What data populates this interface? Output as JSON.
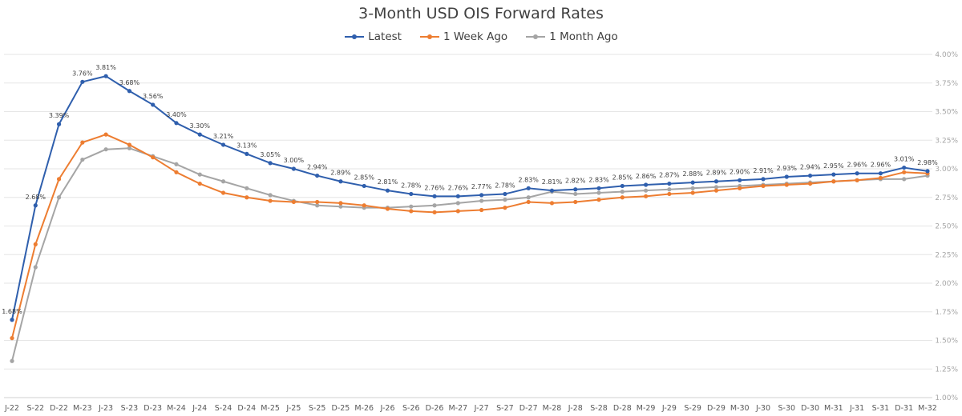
{
  "chart_data": {
    "type": "line",
    "title": "3-Month USD OIS Forward Rates",
    "xlabel": "",
    "ylabel": "",
    "ylim": [
      1.0,
      4.0
    ],
    "y_ticks": [
      "1.00%",
      "1.25%",
      "1.50%",
      "1.75%",
      "2.00%",
      "2.25%",
      "2.50%",
      "2.75%",
      "3.00%",
      "3.25%",
      "3.50%",
      "3.75%",
      "4.00%"
    ],
    "y_axis_position": "right",
    "grid": true,
    "legend_position": "top",
    "categories": [
      "J-22",
      "S-22",
      "D-22",
      "M-23",
      "J-23",
      "S-23",
      "D-23",
      "M-24",
      "J-24",
      "S-24",
      "D-24",
      "M-25",
      "J-25",
      "S-25",
      "D-25",
      "M-26",
      "J-26",
      "S-26",
      "D-26",
      "M-27",
      "J-27",
      "S-27",
      "D-27",
      "M-28",
      "J-28",
      "S-28",
      "D-28",
      "M-29",
      "J-29",
      "S-29",
      "D-29",
      "M-30",
      "J-30",
      "S-30",
      "D-30",
      "M-31",
      "J-31",
      "S-31",
      "D-31",
      "M-32"
    ],
    "series": [
      {
        "name": "Latest",
        "color": "#2f5fad",
        "values": [
          1.68,
          2.68,
          3.39,
          3.76,
          3.81,
          3.68,
          3.56,
          3.4,
          3.3,
          3.21,
          3.13,
          3.05,
          3.0,
          2.94,
          2.89,
          2.85,
          2.81,
          2.78,
          2.76,
          2.76,
          2.77,
          2.78,
          2.83,
          2.81,
          2.82,
          2.83,
          2.85,
          2.86,
          2.87,
          2.88,
          2.89,
          2.9,
          2.91,
          2.93,
          2.94,
          2.95,
          2.96,
          2.96,
          3.01,
          2.98
        ],
        "labels": [
          "1.68%",
          "2.68%",
          "3.39%",
          "3.76%",
          "3.81%",
          "3.68%",
          "3.56%",
          "3.40%",
          "3.30%",
          "3.21%",
          "3.13%",
          "3.05%",
          "3.00%",
          "2.94%",
          "2.89%",
          "2.85%",
          "2.81%",
          "2.78%",
          "2.76%",
          "2.76%",
          "2.77%",
          "2.78%",
          "2.83%",
          "2.81%",
          "2.82%",
          "2.83%",
          "2.85%",
          "2.86%",
          "2.87%",
          "2.88%",
          "2.89%",
          "2.90%",
          "2.91%",
          "2.93%",
          "2.94%",
          "2.95%",
          "2.96%",
          "2.96%",
          "3.01%",
          "2.98%"
        ]
      },
      {
        "name": "1 Week Ago",
        "color": "#ed7d31",
        "values": [
          1.52,
          2.34,
          2.91,
          3.23,
          3.3,
          3.21,
          3.1,
          2.97,
          2.87,
          2.79,
          2.75,
          2.72,
          2.71,
          2.71,
          2.7,
          2.68,
          2.65,
          2.63,
          2.62,
          2.63,
          2.64,
          2.66,
          2.71,
          2.7,
          2.71,
          2.73,
          2.75,
          2.76,
          2.78,
          2.79,
          2.81,
          2.83,
          2.85,
          2.86,
          2.87,
          2.89,
          2.9,
          2.92,
          2.97,
          2.96
        ]
      },
      {
        "name": "1 Month Ago",
        "color": "#a5a5a5",
        "values": [
          1.32,
          2.14,
          2.75,
          3.08,
          3.17,
          3.18,
          3.11,
          3.04,
          2.95,
          2.89,
          2.83,
          2.77,
          2.72,
          2.68,
          2.67,
          2.66,
          2.66,
          2.67,
          2.68,
          2.7,
          2.72,
          2.73,
          2.75,
          2.8,
          2.78,
          2.79,
          2.8,
          2.81,
          2.82,
          2.83,
          2.84,
          2.85,
          2.86,
          2.87,
          2.88,
          2.89,
          2.9,
          2.91,
          2.91,
          2.94
        ]
      }
    ]
  }
}
